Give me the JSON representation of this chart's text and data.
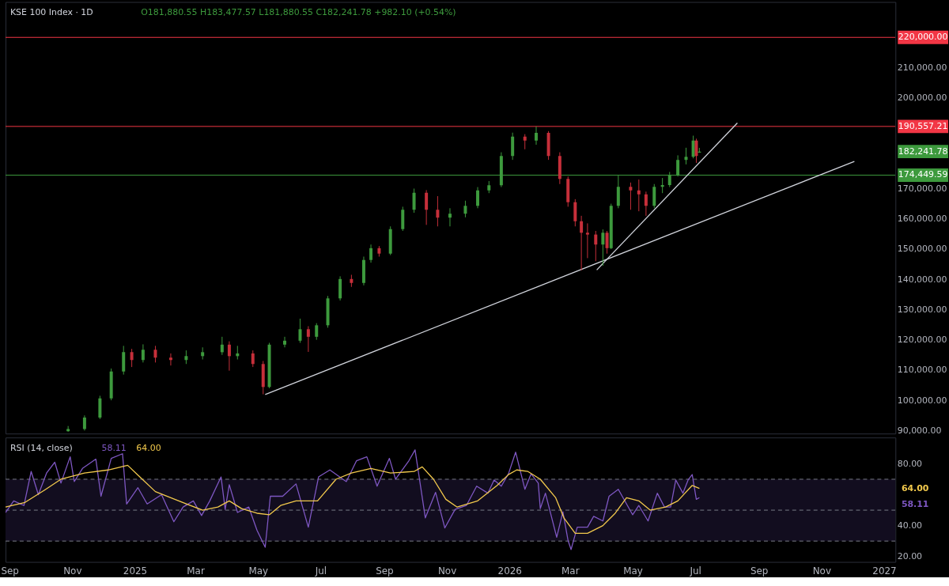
{
  "chart_data": [
    {
      "type": "candlestick",
      "title": "KSE 100 Index · 1D",
      "subtitle": "O181,880.55  H183,477.57  L181,880.55  C182,241.78  +982.10 (+0.54%)",
      "x": [
        "2024-10-28",
        "2024-11-13",
        "2024-11-28",
        "2024-12-09",
        "2024-12-21",
        "2024-12-29",
        "2025-01-09",
        "2025-01-21",
        "2025-02-05",
        "2025-02-20",
        "2025-03-08",
        "2025-03-27",
        "2025-04-03",
        "2025-04-11",
        "2025-04-26",
        "2025-05-06",
        "2025-05-12",
        "2025-05-27",
        "2025-06-11",
        "2025-06-19",
        "2025-06-27",
        "2025-07-08",
        "2025-07-20",
        "2025-07-31",
        "2025-08-12",
        "2025-08-19",
        "2025-08-27",
        "2025-09-07",
        "2025-09-19",
        "2025-09-30",
        "2025-10-12",
        "2025-10-23",
        "2025-11-04",
        "2025-11-19",
        "2025-12-01",
        "2025-12-12",
        "2025-12-24",
        "2026-01-04",
        "2026-01-16",
        "2026-01-27",
        "2026-02-08",
        "2026-02-19",
        "2026-02-27",
        "2026-03-06",
        "2026-03-12",
        "2026-03-18",
        "2026-03-26",
        "2026-04-02",
        "2026-04-06",
        "2026-04-10",
        "2026-04-17",
        "2026-04-29",
        "2026-05-07",
        "2026-05-14",
        "2026-05-22",
        "2026-05-30",
        "2026-06-06",
        "2026-06-14",
        "2026-06-22",
        "2026-06-29",
        "2026-07-02",
        "2026-07-05"
      ],
      "ohlc": [
        [
          89800,
          91500,
          89600,
          90470
        ],
        [
          90470,
          95000,
          90000,
          94300
        ],
        [
          94300,
          101500,
          93800,
          100600
        ],
        [
          100600,
          110500,
          100000,
          109500
        ],
        [
          109500,
          118000,
          108500,
          115900
        ],
        [
          115900,
          117000,
          111000,
          113300
        ],
        [
          113300,
          118500,
          112500,
          116700
        ],
        [
          116700,
          118000,
          112500,
          114100
        ],
        [
          114100,
          115500,
          111500,
          113300
        ],
        [
          113300,
          116500,
          112000,
          114600
        ],
        [
          114600,
          117500,
          113500,
          115900
        ],
        [
          115900,
          121000,
          115000,
          118400
        ],
        [
          118400,
          119500,
          109800,
          114600
        ],
        [
          114600,
          118000,
          113500,
          115500
        ],
        [
          115500,
          116500,
          111000,
          112000
        ],
        [
          112000,
          113000,
          102000,
          104400
        ],
        [
          104400,
          119000,
          104000,
          118400
        ],
        [
          118400,
          121000,
          117500,
          119700
        ],
        [
          119700,
          127000,
          119000,
          123500
        ],
        [
          123500,
          124500,
          116000,
          121000
        ],
        [
          121000,
          125500,
          120000,
          124800
        ],
        [
          124800,
          134500,
          124000,
          133700
        ],
        [
          133700,
          141000,
          133000,
          140100
        ],
        [
          140100,
          141500,
          137500,
          138800
        ],
        [
          138800,
          147500,
          138000,
          146400
        ],
        [
          146400,
          151500,
          145500,
          150300
        ],
        [
          150300,
          151000,
          147500,
          148500
        ],
        [
          148500,
          157500,
          148000,
          156600
        ],
        [
          156600,
          164000,
          156000,
          163000
        ],
        [
          163000,
          170000,
          162000,
          168600
        ],
        [
          168600,
          169500,
          158000,
          163000
        ],
        [
          163000,
          167500,
          157500,
          160400
        ],
        [
          160400,
          163500,
          157500,
          161700
        ],
        [
          161700,
          166000,
          160500,
          164300
        ],
        [
          164300,
          170500,
          163500,
          169400
        ],
        [
          169400,
          172500,
          168500,
          171100
        ],
        [
          171100,
          182000,
          170500,
          180800
        ],
        [
          180800,
          188500,
          179500,
          187200
        ],
        [
          187200,
          188000,
          183000,
          185900
        ],
        [
          185900,
          190557.21,
          184500,
          188400
        ],
        [
          188400,
          189000,
          179500,
          180800
        ],
        [
          180800,
          182000,
          171500,
          173200
        ],
        [
          173200,
          174000,
          164000,
          165500
        ],
        [
          165500,
          166500,
          157500,
          159200
        ],
        [
          159200,
          161000,
          143000,
          155400
        ],
        [
          155400,
          158500,
          147000,
          154800
        ],
        [
          154800,
          156000,
          146000,
          151500
        ],
        [
          151500,
          156500,
          144500,
          155400
        ],
        [
          155400,
          156000,
          148500,
          150300
        ],
        [
          150300,
          165000,
          150000,
          164300
        ],
        [
          164300,
          174449.59,
          163500,
          170600
        ],
        [
          170600,
          172000,
          163000,
          169400
        ],
        [
          169400,
          173000,
          162500,
          168100
        ],
        [
          168100,
          169000,
          161000,
          164300
        ],
        [
          164300,
          171500,
          163500,
          170600
        ],
        [
          170600,
          173500,
          168500,
          171200
        ],
        [
          171200,
          175500,
          170500,
          174400
        ],
        [
          174400,
          181000,
          174000,
          179500
        ],
        [
          179500,
          183500,
          178000,
          180500
        ],
        [
          180500,
          187500,
          180000,
          185900
        ],
        [
          185900,
          186500,
          178500,
          180800
        ],
        [
          181880.55,
          183477.57,
          181880.55,
          182241.78
        ]
      ],
      "colors": [
        "#3d9a3d",
        "#3d9a3d",
        "#3d9a3d",
        "#3d9a3d",
        "#3d9a3d",
        "#c62f3a",
        "#3d9a3d",
        "#c62f3a",
        "#c62f3a",
        "#3d9a3d",
        "#3d9a3d",
        "#3d9a3d",
        "#c62f3a",
        "#3d9a3d",
        "#c62f3a",
        "#c62f3a",
        "#3d9a3d",
        "#3d9a3d",
        "#3d9a3d",
        "#c62f3a",
        "#3d9a3d",
        "#3d9a3d",
        "#3d9a3d",
        "#c62f3a",
        "#3d9a3d",
        "#3d9a3d",
        "#c62f3a",
        "#3d9a3d",
        "#3d9a3d",
        "#3d9a3d",
        "#c62f3a",
        "#c62f3a",
        "#3d9a3d",
        "#3d9a3d",
        "#3d9a3d",
        "#3d9a3d",
        "#3d9a3d",
        "#3d9a3d",
        "#c62f3a",
        "#3d9a3d",
        "#c62f3a",
        "#c62f3a",
        "#c62f3a",
        "#c62f3a",
        "#c62f3a",
        "#c62f3a",
        "#c62f3a",
        "#3d9a3d",
        "#c62f3a",
        "#3d9a3d",
        "#3d9a3d",
        "#c62f3a",
        "#c62f3a",
        "#c62f3a",
        "#3d9a3d",
        "#3d9a3d",
        "#3d9a3d",
        "#3d9a3d",
        "#3d9a3d",
        "#3d9a3d",
        "#c62f3a",
        "#3d9a3d"
      ],
      "series": [
        {
          "type": "line",
          "color": "#d1d4dc",
          "x": [
            "2025-05-08",
            "2026-12-03"
          ],
          "values": [
            101900,
            179000
          ]
        },
        {
          "type": "line",
          "color": "#d1d4dc",
          "x": [
            "2026-03-27",
            "2026-08-11"
          ],
          "values": [
            143100,
            191700
          ]
        }
      ],
      "ref_lines": [
        {
          "axis": "y",
          "value": 220000,
          "label": "220,000.00",
          "color": "#f23645"
        },
        {
          "axis": "y",
          "value": 190557.21,
          "label": "190,557.21",
          "color": "#f23645"
        },
        {
          "axis": "y",
          "value": 174449.59,
          "label": "174,449.59",
          "color": "#3d9a3d"
        }
      ],
      "annotations": [
        "182,241.78"
      ],
      "xlim": [
        "2024-08-28",
        "2027-01-12"
      ],
      "ylim": [
        89000,
        231700
      ],
      "yticks": [
        {
          "value": 90000,
          "label": "90,000.00"
        },
        {
          "value": 100000,
          "label": "100,000.00"
        },
        {
          "value": 110000,
          "label": "110,000.00"
        },
        {
          "value": 120000,
          "label": "120,000.00"
        },
        {
          "value": 130000,
          "label": "130,000.00"
        },
        {
          "value": 140000,
          "label": "140,000.00"
        },
        {
          "value": 150000,
          "label": "150,000.00"
        },
        {
          "value": 160000,
          "label": "160,000.00"
        },
        {
          "value": 170000,
          "label": "170,000.00"
        },
        {
          "value": 200000,
          "label": "200,000.00"
        },
        {
          "value": 210000,
          "label": "210,000.00"
        }
      ],
      "tick_labels": "y"
    },
    {
      "type": "line",
      "title": "RSI (14, close)",
      "series": [
        {
          "name": "58.11",
          "color": "#7e57c2",
          "x": [
            "2024-08-28",
            "2024-09-05",
            "2024-09-15",
            "2024-09-22",
            "2024-09-29",
            "2024-10-07",
            "2024-10-15",
            "2024-10-21",
            "2024-10-30",
            "2024-11-03",
            "2024-11-11",
            "2024-11-24",
            "2024-11-29",
            "2024-12-09",
            "2024-12-20",
            "2024-12-24",
            "2025-01-04",
            "2025-01-13",
            "2025-01-27",
            "2025-02-08",
            "2025-02-17",
            "2025-02-27",
            "2025-03-07",
            "2025-03-15",
            "2025-03-26",
            "2025-03-30",
            "2025-04-03",
            "2025-04-11",
            "2025-04-22",
            "2025-04-30",
            "2025-05-08",
            "2025-05-13",
            "2025-05-25",
            "2025-06-07",
            "2025-06-19",
            "2025-06-29",
            "2025-07-10",
            "2025-07-26",
            "2025-08-05",
            "2025-08-15",
            "2025-08-25",
            "2025-09-06",
            "2025-09-12",
            "2025-09-25",
            "2025-10-01",
            "2025-10-11",
            "2025-10-21",
            "2025-10-30",
            "2025-11-09",
            "2025-11-20",
            "2025-11-30",
            "2025-12-11",
            "2025-12-17",
            "2025-12-24",
            "2025-12-31",
            "2026-01-07",
            "2026-01-16",
            "2026-01-22",
            "2026-01-29",
            "2026-01-31",
            "2026-02-05",
            "2026-02-16",
            "2026-02-22",
            "2026-02-27",
            "2026-03-02",
            "2026-03-08",
            "2026-03-18",
            "2026-03-24",
            "2026-04-02",
            "2026-04-08",
            "2026-04-17",
            "2026-05-01",
            "2026-05-07",
            "2026-05-16",
            "2026-05-25",
            "2026-06-01",
            "2026-06-07",
            "2026-06-12",
            "2026-06-19",
            "2026-06-24",
            "2026-06-28",
            "2026-07-02",
            "2026-07-05"
          ],
          "values": [
            48.5,
            56,
            53,
            75,
            60,
            74,
            81,
            67.5,
            84.5,
            68.5,
            77,
            83,
            59,
            83.5,
            86.5,
            54,
            64.5,
            54,
            60,
            42.5,
            52,
            56,
            46.5,
            56,
            71.5,
            50.5,
            66.5,
            48.5,
            52,
            37,
            26,
            59,
            59,
            67,
            39,
            71.5,
            76,
            68.5,
            82,
            84.5,
            65.5,
            83.5,
            70,
            82,
            89,
            45,
            61.5,
            38.5,
            50.5,
            53,
            65.5,
            61,
            69.5,
            65.5,
            73.5,
            87.5,
            63.5,
            73.5,
            67.5,
            51,
            61,
            32.5,
            49,
            30.5,
            24.5,
            39,
            39,
            46,
            43,
            59,
            63.5,
            47,
            53,
            43,
            61,
            52,
            52,
            69.5,
            61,
            69.5,
            73,
            57,
            58.11
          ]
        },
        {
          "name": "64.00",
          "color": "#f2c94c",
          "x": [
            "2024-08-28",
            "2024-09-16",
            "2024-10-05",
            "2024-10-21",
            "2024-11-13",
            "2024-12-06",
            "2024-12-25",
            "2025-01-05",
            "2025-01-21",
            "2025-02-05",
            "2025-02-24",
            "2025-03-08",
            "2025-03-23",
            "2025-04-03",
            "2025-04-15",
            "2025-04-30",
            "2025-05-12",
            "2025-05-23",
            "2025-06-07",
            "2025-06-28",
            "2025-07-16",
            "2025-07-31",
            "2025-08-19",
            "2025-09-07",
            "2025-09-30",
            "2025-10-08",
            "2025-10-19",
            "2025-10-31",
            "2025-11-11",
            "2025-12-01",
            "2025-12-20",
            "2025-12-31",
            "2026-01-08",
            "2026-01-19",
            "2026-01-31",
            "2026-02-15",
            "2026-02-23",
            "2026-03-06",
            "2026-03-18",
            "2026-04-02",
            "2026-04-14",
            "2026-04-25",
            "2026-05-07",
            "2026-05-18",
            "2026-06-02",
            "2026-06-14",
            "2026-06-28",
            "2026-07-05"
          ],
          "values": [
            52,
            55,
            63,
            70,
            74,
            76,
            79,
            72,
            62,
            58,
            53,
            50,
            52,
            56,
            51,
            48,
            47,
            53,
            56,
            56,
            70,
            74,
            77,
            74,
            75,
            78,
            70,
            57,
            52,
            56,
            66,
            73,
            76,
            75,
            70,
            58,
            45,
            35,
            35,
            40,
            48,
            58,
            56,
            50,
            52,
            56,
            66,
            64
          ]
        }
      ],
      "bands": [
        {
          "axis": "y",
          "from": 30,
          "to": 70,
          "color": "#120d1f"
        }
      ],
      "ref_lines": [
        {
          "axis": "y",
          "value": 70,
          "line_style": "dashed",
          "color": "#787b86"
        },
        {
          "axis": "y",
          "value": 50,
          "line_style": "dashed",
          "color": "#787b86"
        },
        {
          "axis": "y",
          "value": 30,
          "line_style": "dashed",
          "color": "#787b86"
        }
      ],
      "xlim": [
        "2024-08-28",
        "2027-01-12"
      ],
      "ylim": [
        16.5,
        97
      ],
      "xticks": [
        {
          "value": "2024-09-01",
          "label": "Sep"
        },
        {
          "value": "2024-11-01",
          "label": "Nov"
        },
        {
          "value": "2025-01-01",
          "label": "2025"
        },
        {
          "value": "2025-03-01",
          "label": "Mar"
        },
        {
          "value": "2025-05-01",
          "label": "May"
        },
        {
          "value": "2025-07-01",
          "label": "Jul"
        },
        {
          "value": "2025-09-01",
          "label": "Sep"
        },
        {
          "value": "2025-11-01",
          "label": "Nov"
        },
        {
          "value": "2026-01-01",
          "label": "2026"
        },
        {
          "value": "2026-03-01",
          "label": "Mar"
        },
        {
          "value": "2026-05-01",
          "label": "May"
        },
        {
          "value": "2026-07-01",
          "label": "Jul"
        },
        {
          "value": "2026-09-01",
          "label": "Sep"
        },
        {
          "value": "2026-11-01",
          "label": "Nov"
        },
        {
          "value": "2027-01-01",
          "label": "2027"
        }
      ],
      "yticks": [
        {
          "value": 20,
          "label": "20.00"
        },
        {
          "value": 40,
          "label": "40.00"
        },
        {
          "value": 80,
          "label": "80.00"
        }
      ]
    }
  ]
}
